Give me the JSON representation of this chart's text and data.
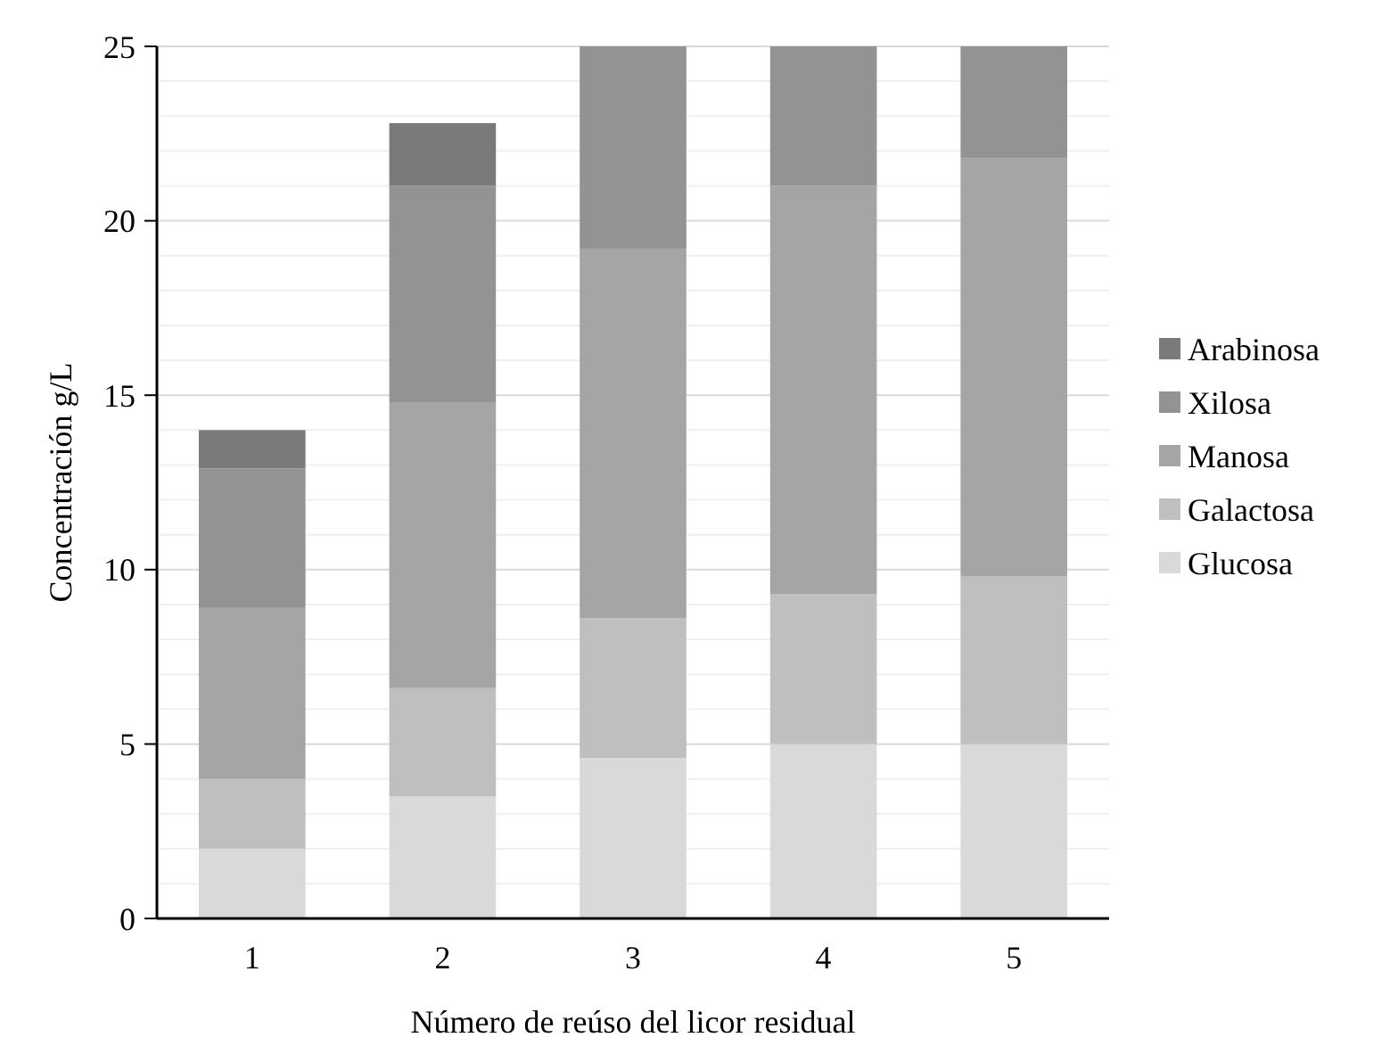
{
  "chart_data": {
    "type": "bar",
    "stacked": true,
    "xlabel": "Número de reúso del licor residual",
    "ylabel": "Concentración g/L",
    "categories": [
      "1",
      "2",
      "3",
      "4",
      "5"
    ],
    "series": [
      {
        "name": "Glucosa",
        "color": "#d9d9d9",
        "values": [
          2.0,
          3.5,
          4.6,
          5.0,
          5.0
        ]
      },
      {
        "name": "Galactosa",
        "color": "#bfbfbf",
        "values": [
          2.0,
          3.1,
          4.0,
          4.3,
          4.8
        ]
      },
      {
        "name": "Manosa",
        "color": "#a5a5a5",
        "values": [
          4.9,
          8.2,
          10.6,
          11.7,
          12.0
        ]
      },
      {
        "name": "Xilosa",
        "color": "#939393",
        "values": [
          4.0,
          6.2,
          5.8,
          4.0,
          3.2
        ]
      },
      {
        "name": "Arabinosa",
        "color": "#7a7a7a",
        "values": [
          1.1,
          1.8,
          null,
          null,
          null
        ]
      }
    ],
    "ylim": [
      0,
      25
    ],
    "yticks": [
      0,
      {
        "value": 1,
        "label": null
      },
      {
        "value": 2,
        "label": null
      },
      {
        "value": 3,
        "label": null
      },
      {
        "value": 4,
        "label": null
      },
      5,
      {
        "value": 6,
        "label": null
      },
      {
        "value": 7,
        "label": null
      },
      {
        "value": 8,
        "label": null
      },
      {
        "value": 9,
        "label": null
      },
      10,
      {
        "value": 11,
        "label": null
      },
      {
        "value": 12,
        "label": null
      },
      {
        "value": 13,
        "label": null
      },
      {
        "value": 14,
        "label": null
      },
      15,
      {
        "value": 16,
        "label": null
      },
      {
        "value": 17,
        "label": null
      },
      {
        "value": 18,
        "label": null
      },
      {
        "value": 19,
        "label": null
      },
      20,
      {
        "value": 21,
        "label": null
      },
      {
        "value": 22,
        "label": null
      },
      {
        "value": 23,
        "label": null
      },
      {
        "value": 24,
        "label": null
      },
      25
    ],
    "grid": "y",
    "legend": "right"
  }
}
